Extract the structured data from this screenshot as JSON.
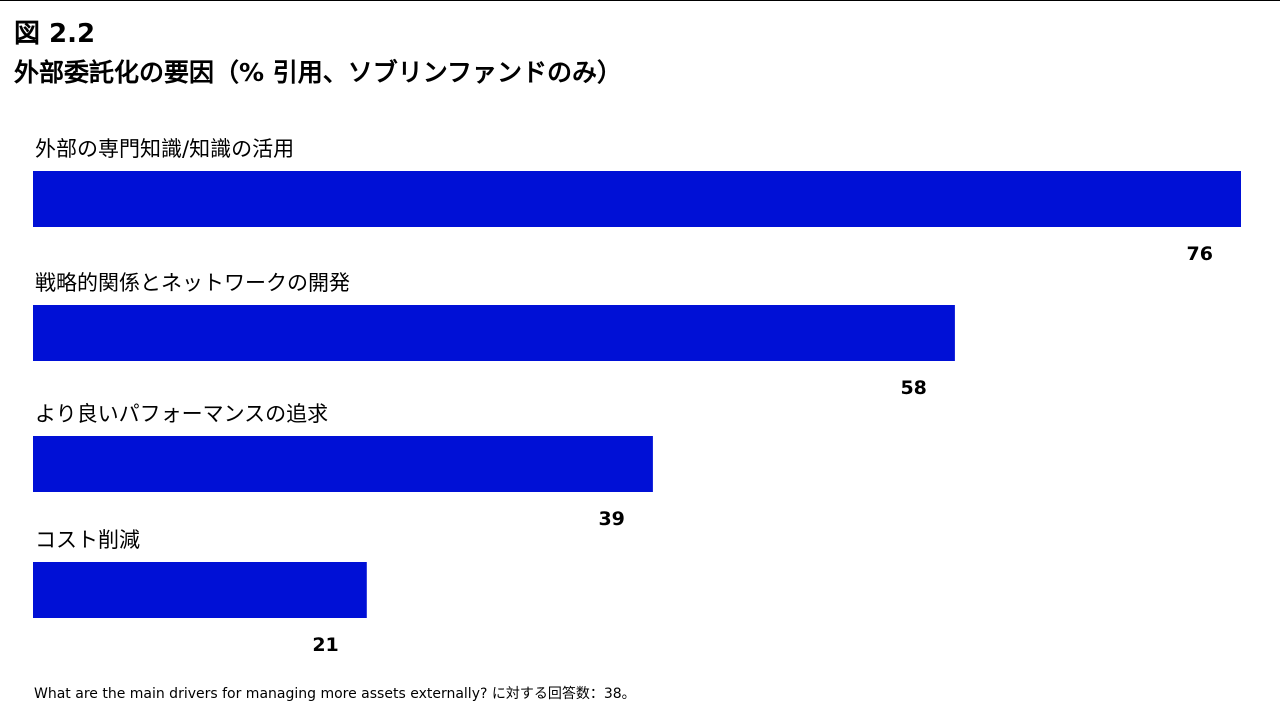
{
  "figure": {
    "label": "図 2.2",
    "title": "外部委託化の要因（% 引用、ソブリンファンドのみ）"
  },
  "colors": {
    "bar": "#0010d6",
    "text": "#000000",
    "background": "#ffffff"
  },
  "chart_data": {
    "type": "bar",
    "orientation": "horizontal",
    "title": "外部委託化の要因（% 引用、ソブリンファンドのみ）",
    "categories": [
      "外部の専門知識/知識の活用",
      "戦略的関係とネットワークの開発",
      "より良いパフォーマンスの追求",
      "コスト削減"
    ],
    "values": [
      76,
      58,
      39,
      21
    ],
    "xlim": [
      0,
      76
    ],
    "xlabel": "",
    "ylabel": "",
    "grid": false,
    "legend": "none",
    "data_labels": true
  },
  "footnote": "What are the main drivers for managing more assets externally? に対する回答数：38。"
}
